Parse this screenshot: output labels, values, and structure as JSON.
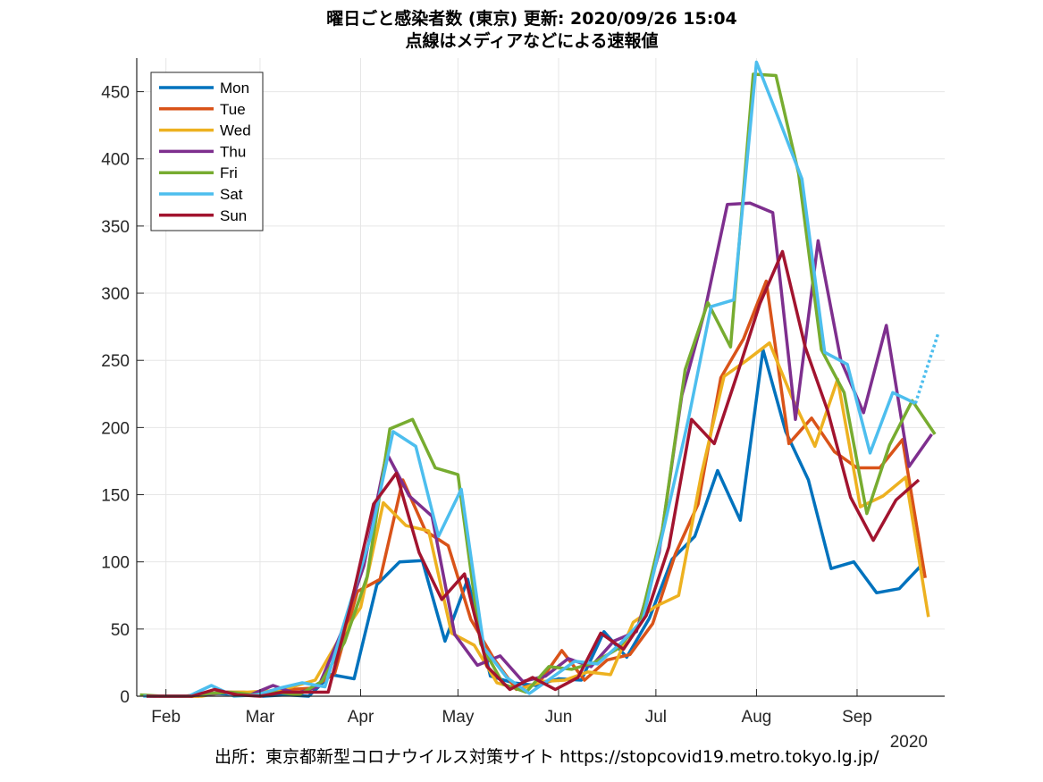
{
  "chart_data": {
    "type": "line",
    "title": "曜日ごと感染者数 (東京)   更新: 2020/09/26 15:04",
    "subtitle": "点線はメディアなどによる速報値",
    "xlabel": "",
    "ylabel": "",
    "year_label": "2020",
    "source": "出所：東京都新型コロナウイルス対策サイト https://stopcovid19.metro.tokyo.lg.jp/",
    "ylim": [
      0,
      475
    ],
    "yticks": [
      0,
      50,
      100,
      150,
      200,
      250,
      300,
      350,
      400,
      450
    ],
    "xlim": [
      "2020-01-23",
      "2020-09-28"
    ],
    "xticks": [
      {
        "label": "Feb",
        "date": "2020-02-01"
      },
      {
        "label": "Mar",
        "date": "2020-03-01"
      },
      {
        "label": "Apr",
        "date": "2020-04-01"
      },
      {
        "label": "May",
        "date": "2020-05-01"
      },
      {
        "label": "Jun",
        "date": "2020-06-01"
      },
      {
        "label": "Jul",
        "date": "2020-07-01"
      },
      {
        "label": "Aug",
        "date": "2020-08-01"
      },
      {
        "label": "Sep",
        "date": "2020-09-01"
      }
    ],
    "grid": true,
    "legend_position": "top-left",
    "series": [
      {
        "name": "Mon",
        "color": "#0072BD",
        "points": [
          [
            "2020-01-27",
            0
          ],
          [
            "2020-02-03",
            0
          ],
          [
            "2020-02-10",
            0
          ],
          [
            "2020-02-17",
            2
          ],
          [
            "2020-02-24",
            1
          ],
          [
            "2020-03-02",
            0
          ],
          [
            "2020-03-09",
            1
          ],
          [
            "2020-03-16",
            0
          ],
          [
            "2020-03-23",
            16
          ],
          [
            "2020-03-30",
            13
          ],
          [
            "2020-04-06",
            83
          ],
          [
            "2020-04-13",
            100
          ],
          [
            "2020-04-20",
            101
          ],
          [
            "2020-04-27",
            41
          ],
          [
            "2020-05-04",
            87
          ],
          [
            "2020-05-11",
            15
          ],
          [
            "2020-05-18",
            10
          ],
          [
            "2020-05-25",
            8
          ],
          [
            "2020-06-01",
            13
          ],
          [
            "2020-06-08",
            12
          ],
          [
            "2020-06-15",
            48
          ],
          [
            "2020-06-22",
            29
          ],
          [
            "2020-06-29",
            58
          ],
          [
            "2020-07-06",
            102
          ],
          [
            "2020-07-13",
            119
          ],
          [
            "2020-07-20",
            168
          ],
          [
            "2020-07-27",
            131
          ],
          [
            "2020-08-03",
            258
          ],
          [
            "2020-08-10",
            197
          ],
          [
            "2020-08-17",
            161
          ],
          [
            "2020-08-24",
            95
          ],
          [
            "2020-08-31",
            100
          ],
          [
            "2020-09-07",
            77
          ],
          [
            "2020-09-14",
            80
          ],
          [
            "2020-09-21",
            98
          ]
        ]
      },
      {
        "name": "Tue",
        "color": "#D95319",
        "points": [
          [
            "2020-01-28",
            0
          ],
          [
            "2020-02-04",
            0
          ],
          [
            "2020-02-11",
            0
          ],
          [
            "2020-02-18",
            3
          ],
          [
            "2020-02-25",
            3
          ],
          [
            "2020-03-03",
            2
          ],
          [
            "2020-03-10",
            5
          ],
          [
            "2020-03-17",
            6
          ],
          [
            "2020-03-24",
            17
          ],
          [
            "2020-03-31",
            78
          ],
          [
            "2020-04-07",
            87
          ],
          [
            "2020-04-14",
            161
          ],
          [
            "2020-04-21",
            123
          ],
          [
            "2020-04-28",
            112
          ],
          [
            "2020-05-05",
            57
          ],
          [
            "2020-05-12",
            28
          ],
          [
            "2020-05-19",
            5
          ],
          [
            "2020-05-26",
            10
          ],
          [
            "2020-06-02",
            34
          ],
          [
            "2020-06-09",
            12
          ],
          [
            "2020-06-16",
            27
          ],
          [
            "2020-06-23",
            31
          ],
          [
            "2020-06-30",
            54
          ],
          [
            "2020-07-07",
            106
          ],
          [
            "2020-07-14",
            143
          ],
          [
            "2020-07-21",
            237
          ],
          [
            "2020-07-28",
            266
          ],
          [
            "2020-08-04",
            309
          ],
          [
            "2020-08-11",
            188
          ],
          [
            "2020-08-18",
            207
          ],
          [
            "2020-08-25",
            182
          ],
          [
            "2020-09-01",
            170
          ],
          [
            "2020-09-08",
            170
          ],
          [
            "2020-09-15",
            191
          ],
          [
            "2020-09-22",
            88
          ]
        ]
      },
      {
        "name": "Wed",
        "color": "#EDB120",
        "points": [
          [
            "2020-01-29",
            0
          ],
          [
            "2020-02-05",
            0
          ],
          [
            "2020-02-12",
            0
          ],
          [
            "2020-02-19",
            3
          ],
          [
            "2020-02-26",
            3
          ],
          [
            "2020-03-04",
            4
          ],
          [
            "2020-03-11",
            7
          ],
          [
            "2020-03-18",
            12
          ],
          [
            "2020-03-25",
            41
          ],
          [
            "2020-04-01",
            66
          ],
          [
            "2020-04-08",
            144
          ],
          [
            "2020-04-15",
            127
          ],
          [
            "2020-04-22",
            123
          ],
          [
            "2020-04-29",
            47
          ],
          [
            "2020-05-06",
            38
          ],
          [
            "2020-05-13",
            10
          ],
          [
            "2020-05-20",
            5
          ],
          [
            "2020-05-27",
            11
          ],
          [
            "2020-06-03",
            12
          ],
          [
            "2020-06-10",
            18
          ],
          [
            "2020-06-17",
            16
          ],
          [
            "2020-06-24",
            55
          ],
          [
            "2020-07-01",
            67
          ],
          [
            "2020-07-08",
            75
          ],
          [
            "2020-07-15",
            165
          ],
          [
            "2020-07-22",
            238
          ],
          [
            "2020-07-29",
            250
          ],
          [
            "2020-08-05",
            263
          ],
          [
            "2020-08-12",
            222
          ],
          [
            "2020-08-19",
            186
          ],
          [
            "2020-08-26",
            236
          ],
          [
            "2020-09-02",
            141
          ],
          [
            "2020-09-09",
            149
          ],
          [
            "2020-09-16",
            163
          ],
          [
            "2020-09-23",
            59
          ]
        ]
      },
      {
        "name": "Thu",
        "color": "#7E2F8E",
        "points": [
          [
            "2020-01-30",
            0
          ],
          [
            "2020-02-06",
            0
          ],
          [
            "2020-02-13",
            1
          ],
          [
            "2020-02-20",
            3
          ],
          [
            "2020-02-27",
            1
          ],
          [
            "2020-03-05",
            8
          ],
          [
            "2020-03-12",
            2
          ],
          [
            "2020-03-19",
            7
          ],
          [
            "2020-03-26",
            47
          ],
          [
            "2020-04-02",
            97
          ],
          [
            "2020-04-09",
            181
          ],
          [
            "2020-04-16",
            149
          ],
          [
            "2020-04-23",
            134
          ],
          [
            "2020-04-30",
            46
          ],
          [
            "2020-05-07",
            23
          ],
          [
            "2020-05-14",
            30
          ],
          [
            "2020-05-21",
            11
          ],
          [
            "2020-05-28",
            15
          ],
          [
            "2020-06-04",
            28
          ],
          [
            "2020-06-11",
            22
          ],
          [
            "2020-06-18",
            41
          ],
          [
            "2020-06-25",
            48
          ],
          [
            "2020-07-02",
            107
          ],
          [
            "2020-07-09",
            224
          ],
          [
            "2020-07-16",
            286
          ],
          [
            "2020-07-23",
            366
          ],
          [
            "2020-07-30",
            367
          ],
          [
            "2020-08-06",
            360
          ],
          [
            "2020-08-13",
            206
          ],
          [
            "2020-08-20",
            339
          ],
          [
            "2020-08-27",
            250
          ],
          [
            "2020-09-03",
            211
          ],
          [
            "2020-09-10",
            276
          ],
          [
            "2020-09-17",
            171
          ],
          [
            "2020-09-24",
            195
          ]
        ]
      },
      {
        "name": "Fri",
        "color": "#77AC30",
        "points": [
          [
            "2020-01-24",
            1
          ],
          [
            "2020-01-31",
            0
          ],
          [
            "2020-02-07",
            0
          ],
          [
            "2020-02-14",
            2
          ],
          [
            "2020-02-21",
            3
          ],
          [
            "2020-02-28",
            1
          ],
          [
            "2020-03-06",
            3
          ],
          [
            "2020-03-13",
            1
          ],
          [
            "2020-03-20",
            11
          ],
          [
            "2020-03-27",
            40
          ],
          [
            "2020-04-03",
            89
          ],
          [
            "2020-04-10",
            199
          ],
          [
            "2020-04-17",
            206
          ],
          [
            "2020-04-24",
            170
          ],
          [
            "2020-05-01",
            165
          ],
          [
            "2020-05-08",
            39
          ],
          [
            "2020-05-15",
            9
          ],
          [
            "2020-05-22",
            3
          ],
          [
            "2020-05-29",
            22
          ],
          [
            "2020-06-05",
            20
          ],
          [
            "2020-06-12",
            25
          ],
          [
            "2020-06-19",
            35
          ],
          [
            "2020-06-26",
            54
          ],
          [
            "2020-07-03",
            124
          ],
          [
            "2020-07-10",
            243
          ],
          [
            "2020-07-17",
            293
          ],
          [
            "2020-07-24",
            260
          ],
          [
            "2020-07-31",
            463
          ],
          [
            "2020-08-07",
            462
          ],
          [
            "2020-08-14",
            389
          ],
          [
            "2020-08-21",
            258
          ],
          [
            "2020-08-28",
            226
          ],
          [
            "2020-09-04",
            136
          ],
          [
            "2020-09-11",
            187
          ],
          [
            "2020-09-18",
            220
          ],
          [
            "2020-09-25",
            195
          ]
        ]
      },
      {
        "name": "Sat",
        "color": "#4DBEEE",
        "points": [
          [
            "2020-01-25",
            0
          ],
          [
            "2020-02-01",
            0
          ],
          [
            "2020-02-08",
            0
          ],
          [
            "2020-02-15",
            8
          ],
          [
            "2020-02-22",
            0
          ],
          [
            "2020-02-29",
            1
          ],
          [
            "2020-03-07",
            6
          ],
          [
            "2020-03-14",
            10
          ],
          [
            "2020-03-21",
            7
          ],
          [
            "2020-03-28",
            63
          ],
          [
            "2020-04-04",
            118
          ],
          [
            "2020-04-11",
            197
          ],
          [
            "2020-04-18",
            186
          ],
          [
            "2020-04-25",
            119
          ],
          [
            "2020-05-02",
            154
          ],
          [
            "2020-05-09",
            36
          ],
          [
            "2020-05-16",
            14
          ],
          [
            "2020-05-23",
            2
          ],
          [
            "2020-05-30",
            14
          ],
          [
            "2020-06-06",
            26
          ],
          [
            "2020-06-13",
            24
          ],
          [
            "2020-06-20",
            39
          ],
          [
            "2020-06-27",
            57
          ],
          [
            "2020-07-04",
            131
          ],
          [
            "2020-07-11",
            206
          ],
          [
            "2020-07-18",
            290
          ],
          [
            "2020-07-25",
            295
          ],
          [
            "2020-08-01",
            472
          ],
          [
            "2020-08-08",
            429
          ],
          [
            "2020-08-15",
            385
          ],
          [
            "2020-08-22",
            256
          ],
          [
            "2020-08-29",
            247
          ],
          [
            "2020-09-05",
            181
          ],
          [
            "2020-09-12",
            226
          ],
          [
            "2020-09-19",
            218
          ]
        ]
      },
      {
        "name": "Sat (速報値)",
        "color": "#4DBEEE",
        "dashed": true,
        "points": [
          [
            "2020-09-19",
            218
          ],
          [
            "2020-09-26",
            270
          ]
        ]
      },
      {
        "name": "Sun",
        "color": "#A2142F",
        "points": [
          [
            "2020-01-26",
            0
          ],
          [
            "2020-02-02",
            0
          ],
          [
            "2020-02-09",
            0
          ],
          [
            "2020-02-16",
            5
          ],
          [
            "2020-02-23",
            1
          ],
          [
            "2020-03-01",
            0
          ],
          [
            "2020-03-08",
            3
          ],
          [
            "2020-03-15",
            3
          ],
          [
            "2020-03-22",
            3
          ],
          [
            "2020-03-29",
            68
          ],
          [
            "2020-04-05",
            143
          ],
          [
            "2020-04-12",
            166
          ],
          [
            "2020-04-19",
            107
          ],
          [
            "2020-04-26",
            72
          ],
          [
            "2020-05-03",
            91
          ],
          [
            "2020-05-10",
            22
          ],
          [
            "2020-05-17",
            5
          ],
          [
            "2020-05-24",
            14
          ],
          [
            "2020-05-31",
            5
          ],
          [
            "2020-06-07",
            14
          ],
          [
            "2020-06-14",
            47
          ],
          [
            "2020-06-21",
            35
          ],
          [
            "2020-06-28",
            60
          ],
          [
            "2020-07-05",
            111
          ],
          [
            "2020-07-12",
            206
          ],
          [
            "2020-07-19",
            188
          ],
          [
            "2020-07-26",
            239
          ],
          [
            "2020-08-02",
            292
          ],
          [
            "2020-08-09",
            331
          ],
          [
            "2020-08-16",
            260
          ],
          [
            "2020-08-23",
            212
          ],
          [
            "2020-08-30",
            148
          ],
          [
            "2020-09-06",
            116
          ],
          [
            "2020-09-13",
            146
          ],
          [
            "2020-09-20",
            161
          ]
        ]
      }
    ],
    "legend": [
      "Mon",
      "Tue",
      "Wed",
      "Thu",
      "Fri",
      "Sat",
      "Sun"
    ]
  }
}
